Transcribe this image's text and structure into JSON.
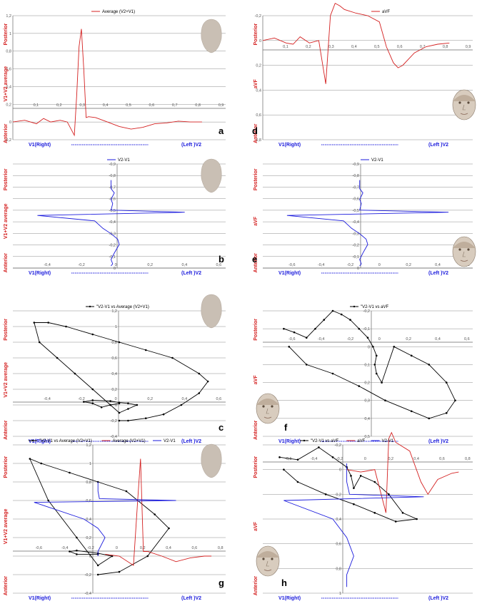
{
  "colors": {
    "red": "#d42020",
    "blue": "#1a1adc",
    "black": "#000000",
    "grid": "#8c8c8c",
    "head": "#c9bfb4"
  },
  "chart_data": [
    {
      "id": "a",
      "type": "line",
      "letter": "a",
      "legend": [
        "Average (V2+V1)"
      ],
      "x_ticks": [
        "0,1",
        "0,2",
        "0,3",
        "0,4",
        "0,5",
        "0,6",
        "0,7",
        "0,8",
        "0,9"
      ],
      "y_ticks": [
        "1,2",
        "1",
        "0,8",
        "0,6",
        "0,4",
        "0,2",
        "0",
        "-0,2"
      ],
      "ylabel_top": "Posterior",
      "ylabel_mid": "V1+V2 average",
      "ylabel_bot": "Anterior",
      "xlabel_left": "V1(Right)",
      "xlabel_right": "(Left )V2",
      "series": [
        {
          "color": "red",
          "x": [
            0,
            0.05,
            0.1,
            0.13,
            0.16,
            0.2,
            0.23,
            0.26,
            0.27,
            0.28,
            0.29,
            0.3,
            0.31,
            0.32,
            0.35,
            0.4,
            0.45,
            0.5,
            0.55,
            0.6,
            0.65,
            0.7,
            0.75,
            0.8
          ],
          "y": [
            0,
            0.02,
            -0.02,
            0.04,
            0,
            0.02,
            0,
            -0.15,
            0.3,
            0.85,
            1.05,
            0.6,
            0.05,
            0.06,
            0.05,
            0,
            -0.05,
            -0.08,
            -0.06,
            -0.02,
            -0.01,
            0.01,
            0,
            0
          ]
        }
      ]
    },
    {
      "id": "d",
      "type": "line",
      "letter": "d",
      "legend": [
        "aVF"
      ],
      "x_ticks": [
        "0,1",
        "0,2",
        "0,3",
        "0,4",
        "0,5",
        "0,6",
        "0,7",
        "0,8",
        "0,9"
      ],
      "y_ticks": [
        "-0,2",
        "0",
        "0,2",
        "0,4",
        "0,6",
        "0,8"
      ],
      "ylabel_top": "Posterior",
      "ylabel_mid": "aVF",
      "ylabel_bot": "Anterior",
      "xlabel_left": "V1(Right)",
      "xlabel_right": "(Left )V2",
      "series": [
        {
          "color": "red",
          "x": [
            0,
            0.05,
            0.1,
            0.13,
            0.16,
            0.2,
            0.24,
            0.27,
            0.29,
            0.3,
            0.31,
            0.33,
            0.35,
            0.4,
            0.45,
            0.5,
            0.53,
            0.56,
            0.58,
            0.6,
            0.65,
            0.7,
            0.75,
            0.8
          ],
          "y": [
            0,
            -0.02,
            0.02,
            0.03,
            -0.03,
            0.02,
            0.0,
            0.35,
            -0.2,
            -0.25,
            -0.3,
            -0.28,
            -0.25,
            -0.22,
            -0.2,
            -0.15,
            0.05,
            0.18,
            0.22,
            0.2,
            0.1,
            0.05,
            0.03,
            0.02
          ]
        }
      ]
    },
    {
      "id": "b",
      "type": "line",
      "letter": "b",
      "legend": [
        "V2-V1"
      ],
      "x_ticks": [
        "-0,4",
        "-0,2",
        "0",
        "0,2",
        "0,4",
        "0,6"
      ],
      "y_ticks": [
        "-0,9",
        "-0,8",
        "-0,7",
        "-0,6",
        "-0,5",
        "-0,4",
        "-0,3",
        "-0,2",
        "-0,1",
        "0"
      ],
      "ylabel_top": "Posterior",
      "ylabel_mid": "V1+V2 average",
      "ylabel_bot": "Anterior",
      "xlabel_left": "V1(Right)",
      "xlabel_right": "(Left )V2",
      "series": [
        {
          "color": "blue",
          "x": [
            0,
            0,
            0.02,
            0,
            0.01,
            0,
            0.45,
            -0.45,
            -0.1,
            -0.05,
            0,
            0.04,
            0.05,
            0.02,
            0,
            0.01,
            0
          ],
          "y": [
            -0.8,
            -0.72,
            -0.68,
            -0.62,
            -0.58,
            -0.52,
            -0.5,
            -0.47,
            -0.42,
            -0.35,
            -0.3,
            -0.25,
            -0.2,
            -0.12,
            -0.06,
            -0.02,
            0
          ]
        }
      ]
    },
    {
      "id": "e",
      "type": "line",
      "letter": "e",
      "legend": [
        "V2-V1"
      ],
      "x_ticks": [
        "-0,6",
        "-0,4",
        "-0,2",
        "0",
        "0,2",
        "0,4",
        "0,6"
      ],
      "y_ticks": [
        "-0,9",
        "-0,8",
        "-0,7",
        "-0,6",
        "-0,5",
        "-0,4",
        "-0,3",
        "-0,2",
        "-0,1",
        "0"
      ],
      "ylabel_top": "Posterior",
      "ylabel_mid": "aVF",
      "ylabel_bot": "Anterior",
      "xlabel_left": "V1(Right)",
      "xlabel_right": "(Left )V2",
      "series": [
        {
          "color": "blue",
          "x": [
            0,
            0,
            0.02,
            0,
            0.01,
            0,
            0.55,
            -0.45,
            -0.1,
            -0.05,
            0,
            0.04,
            0.05,
            0.02,
            0,
            0.01,
            0
          ],
          "y": [
            -0.8,
            -0.72,
            -0.68,
            -0.62,
            -0.58,
            -0.52,
            -0.5,
            -0.47,
            -0.42,
            -0.35,
            -0.3,
            -0.25,
            -0.2,
            -0.12,
            -0.06,
            -0.02,
            0
          ]
        }
      ]
    },
    {
      "id": "c",
      "type": "scatter",
      "letter": "c",
      "legend": [
        "\"V2-V1 vs Average (V2+V1)"
      ],
      "x_ticks": [
        "-0,4",
        "-0,2",
        "0",
        "0,2",
        "0,4",
        "0,6"
      ],
      "y_ticks": [
        "1,2",
        "1",
        "0,8",
        "0,6",
        "0,4",
        "0,2",
        "0",
        "-0,2",
        "-0,4"
      ],
      "ylabel_top": "Posterior",
      "ylabel_mid": "V1+V2 average",
      "ylabel_bot": "Anterior",
      "xlabel_left": "V1(Right)",
      "xlabel_right": "(Left )V2",
      "series": [
        {
          "color": "black",
          "x": [
            0,
            -0.05,
            -0.1,
            -0.15,
            -0.2,
            -0.15,
            -0.05,
            0,
            0.05,
            0.1,
            0.05,
            0,
            -0.05,
            -0.15,
            -0.25,
            -0.35,
            -0.45,
            -0.48,
            -0.4,
            -0.3,
            -0.15,
            0,
            0.15,
            0.3,
            0.45,
            0.5,
            0.45,
            0.35,
            0.25,
            0.15,
            0.05,
            0
          ],
          "y": [
            0.02,
            0,
            -0.03,
            0.02,
            0.04,
            0.06,
            0.05,
            0.03,
            0.02,
            0.0,
            -0.05,
            -0.1,
            0.0,
            0.2,
            0.4,
            0.6,
            0.8,
            1.05,
            1.05,
            1.0,
            0.9,
            0.8,
            0.7,
            0.6,
            0.4,
            0.3,
            0.15,
            0.0,
            -0.12,
            -0.17,
            -0.2,
            -0.2
          ]
        }
      ]
    },
    {
      "id": "f",
      "type": "scatter",
      "letter": "f",
      "legend": [
        "\"V2-V1 vs aVF"
      ],
      "x_ticks": [
        "-0,6",
        "-0,4",
        "-0,2",
        "0",
        "0,2",
        "0,4",
        "0,6"
      ],
      "y_ticks": [
        "-0,2",
        "-0,1",
        "0",
        "0,1",
        "0,2",
        "0,3",
        "0,4",
        "0,5"
      ],
      "ylabel_top": "Posterior",
      "ylabel_mid": "aVF",
      "ylabel_bot": "Anterior",
      "xlabel_left": "V1(Right)",
      "xlabel_right": "(Left )V2",
      "series": [
        {
          "color": "black",
          "x": [
            -0.48,
            -0.42,
            -0.35,
            -0.3,
            -0.25,
            -0.2,
            -0.15,
            -0.1,
            -0.05,
            0,
            0.03,
            0.05,
            0.04,
            0.05,
            0.08,
            0.15,
            0.25,
            0.35,
            0.45,
            0.5,
            0.45,
            0.35,
            0.25,
            0.1,
            -0.05,
            -0.2,
            -0.35,
            -0.45
          ],
          "y": [
            -0.1,
            -0.08,
            -0.05,
            -0.1,
            -0.15,
            -0.2,
            -0.18,
            -0.15,
            -0.1,
            -0.05,
            0.0,
            0.05,
            0.1,
            0.15,
            0.2,
            0.0,
            0.05,
            0.1,
            0.2,
            0.3,
            0.37,
            0.4,
            0.36,
            0.3,
            0.22,
            0.15,
            0.1,
            0.0
          ]
        }
      ]
    },
    {
      "id": "g",
      "type": "scatter",
      "letter": "g",
      "legend": [
        "\"V2-V1 vs Average (V2+V1)",
        "Average (V2+V1)",
        "V2-V1"
      ],
      "x_ticks": [
        "-0,6",
        "-0,4",
        "-0,2",
        "0",
        "0,2",
        "0,4",
        "0,6",
        "0,8"
      ],
      "y_ticks": [
        "1,2",
        "1",
        "0,8",
        "0,6",
        "0,4",
        "0,2",
        "0",
        "-0,2",
        "-0,4"
      ],
      "ylabel_top": "Posterior",
      "ylabel_mid": "V1+V2 average",
      "ylabel_bot": "Anterior",
      "xlabel_left": "V1(Right)",
      "xlabel_right": "(Left )V2",
      "series": [
        {
          "color": "black",
          "x": [
            0,
            -0.15,
            -0.2,
            -0.15,
            0,
            0.1,
            0,
            -0.15,
            -0.35,
            -0.48,
            -0.4,
            -0.2,
            0,
            0.2,
            0.4,
            0.5,
            0.35,
            0.15,
            0
          ],
          "y": [
            0.02,
            0.02,
            0.05,
            0.06,
            0.03,
            0.0,
            -0.1,
            0.2,
            0.6,
            1.05,
            1.0,
            0.9,
            0.8,
            0.7,
            0.45,
            0.3,
            0.0,
            -0.17,
            -0.2
          ]
        },
        {
          "color": "red",
          "x": [
            0.05,
            0.15,
            0.25,
            0.28,
            0.3,
            0.32,
            0.35,
            0.45,
            0.55,
            0.65,
            0.75,
            0.8
          ],
          "y": [
            0.02,
            0.0,
            -0.1,
            0.6,
            1.05,
            0.05,
            0.05,
            0.0,
            -0.06,
            -0.02,
            0.0,
            0.0
          ]
        },
        {
          "color": "blue",
          "x": [
            0,
            0,
            0.01,
            0.55,
            -0.45,
            -0.1,
            0,
            0.05,
            0.0,
            0.0
          ],
          "y": [
            0.8,
            0.7,
            0.62,
            0.6,
            0.58,
            0.4,
            0.3,
            0.2,
            0.05,
            0.0
          ]
        }
      ]
    },
    {
      "id": "h",
      "type": "scatter",
      "letter": "h",
      "legend": [
        "\"V2-V1 vs aVF",
        "aVF",
        "V2-V1"
      ],
      "x_ticks": [
        "-0,6",
        "-0,4",
        "-0,2",
        "0",
        "0,2",
        "0,4",
        "0,6",
        "0,8"
      ],
      "y_ticks": [
        "-0,2",
        "0",
        "0,2",
        "0,4",
        "0,6",
        "0,8",
        "1"
      ],
      "ylabel_top": "Posterior",
      "ylabel_mid": "aVF",
      "ylabel_bot": "Anterior",
      "xlabel_left": "V1(Right)",
      "xlabel_right": "(Left )V2",
      "series": [
        {
          "color": "black",
          "x": [
            -0.48,
            -0.35,
            -0.2,
            -0.1,
            0,
            0.03,
            0.05,
            0.1,
            0.2,
            0.3,
            0.4,
            0.5,
            0.35,
            0.2,
            0.05,
            -0.15,
            -0.35,
            -0.45
          ],
          "y": [
            -0.1,
            -0.08,
            -0.18,
            -0.1,
            -0.02,
            0.05,
            0.15,
            0.05,
            0.1,
            0.2,
            0.35,
            0.4,
            0.42,
            0.35,
            0.28,
            0.2,
            0.1,
            0.0
          ]
        },
        {
          "color": "red",
          "x": [
            0,
            0.1,
            0.2,
            0.28,
            0.3,
            0.32,
            0.35,
            0.45,
            0.53,
            0.58,
            0.65,
            0.75,
            0.8
          ],
          "y": [
            0,
            0.02,
            0.0,
            0.35,
            -0.25,
            -0.3,
            -0.22,
            -0.15,
            0.1,
            0.2,
            0.08,
            0.03,
            0.02
          ]
        },
        {
          "color": "blue",
          "x": [
            0,
            0,
            0.02,
            0.55,
            -0.45,
            -0.1,
            0,
            0.05,
            0.0,
            0.0
          ],
          "y": [
            -0.05,
            0.1,
            0.2,
            0.22,
            0.25,
            0.4,
            0.55,
            0.7,
            0.85,
            0.95
          ]
        }
      ]
    }
  ]
}
